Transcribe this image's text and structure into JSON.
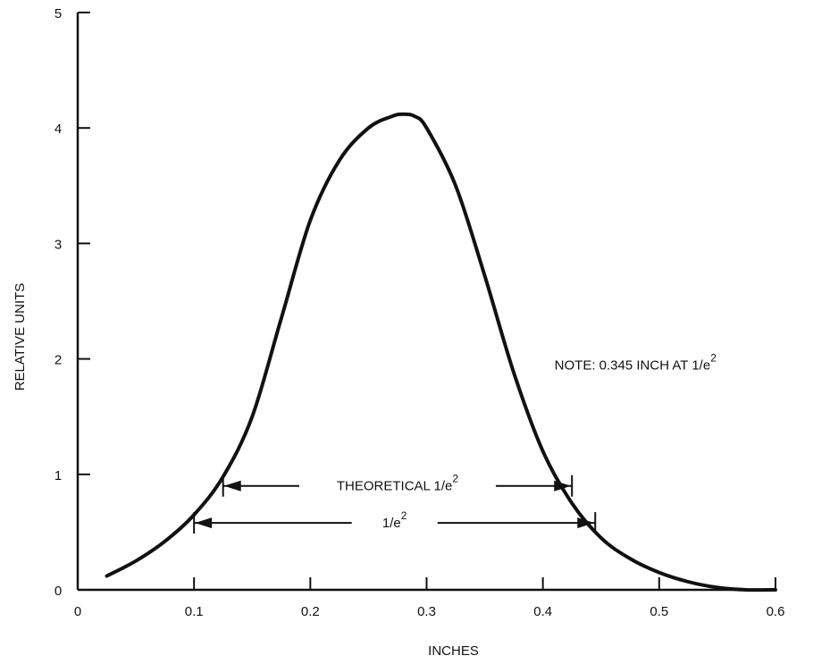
{
  "chart_data": {
    "type": "line",
    "title": "",
    "xlabel": "INCHES",
    "ylabel": "RELATIVE UNITS",
    "xlim": [
      0,
      0.6
    ],
    "ylim": [
      0,
      5
    ],
    "x_ticks": [
      0,
      0.1,
      0.2,
      0.3,
      0.4,
      0.5,
      0.6
    ],
    "x_tick_labels": [
      "0",
      "0.1",
      "0.2",
      "0.3",
      "0.4",
      "0.5",
      "0.6"
    ],
    "y_ticks": [
      0,
      1,
      2,
      3,
      4,
      5
    ],
    "y_tick_labels": [
      "0",
      "1",
      "2",
      "3",
      "4",
      "5"
    ],
    "grid": false,
    "series": [
      {
        "x": [
          0.025,
          0.05,
          0.075,
          0.1,
          0.125,
          0.15,
          0.175,
          0.2,
          0.225,
          0.25,
          0.27,
          0.28,
          0.29,
          0.3,
          0.325,
          0.35,
          0.375,
          0.4,
          0.425,
          0.45,
          0.475,
          0.5,
          0.525,
          0.55,
          0.575,
          0.6
        ],
        "y": [
          0.12,
          0.25,
          0.42,
          0.65,
          0.98,
          1.5,
          2.35,
          3.2,
          3.72,
          4.0,
          4.1,
          4.12,
          4.1,
          4.0,
          3.5,
          2.72,
          1.88,
          1.2,
          0.75,
          0.45,
          0.27,
          0.15,
          0.07,
          0.02,
          0.0,
          0.0
        ]
      }
    ],
    "annotations": {
      "theoretical": {
        "text_main": "THEORETICAL 1/e",
        "text_sup": "2",
        "x_start": 0.125,
        "x_end": 0.425,
        "y": 0.9
      },
      "measured": {
        "text_main": "1/e",
        "text_sup": "2",
        "x_start": 0.1,
        "x_end": 0.445,
        "y": 0.58
      },
      "note": {
        "text_main": "NOTE:  0.345 INCH AT 1/e",
        "text_sup": "2",
        "x": 0.41,
        "y": 2.0
      }
    }
  }
}
